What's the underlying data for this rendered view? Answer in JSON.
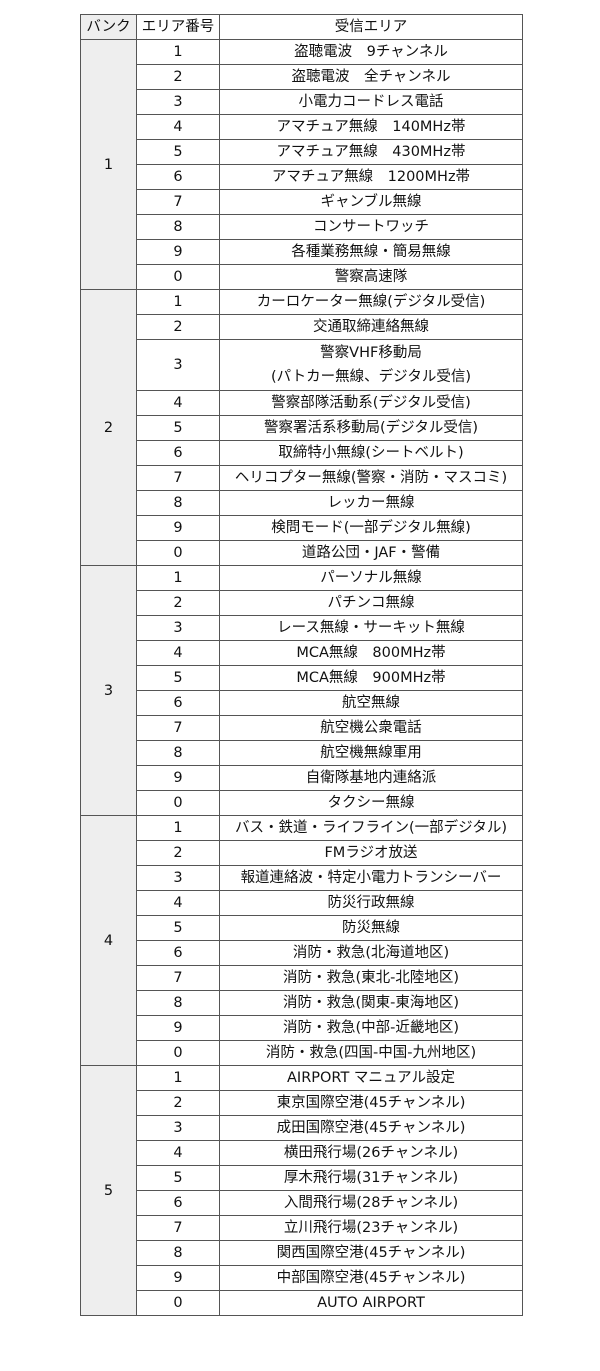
{
  "header": {
    "bank": "バンク",
    "area_no": "エリア番号",
    "area": "受信エリア"
  },
  "banks": [
    {
      "bank": "1",
      "rows": [
        {
          "no": "1",
          "area": "盗聴電波　9チャンネル"
        },
        {
          "no": "2",
          "area": "盗聴電波　全チャンネル"
        },
        {
          "no": "3",
          "area": "小電力コードレス電話"
        },
        {
          "no": "4",
          "area": "アマチュア無線　140MHz帯"
        },
        {
          "no": "5",
          "area": "アマチュア無線　430MHz帯"
        },
        {
          "no": "6",
          "area": "アマチュア無線　1200MHz帯"
        },
        {
          "no": "7",
          "area": "ギャンブル無線"
        },
        {
          "no": "8",
          "area": "コンサートワッチ"
        },
        {
          "no": "9",
          "area": "各種業務無線・簡易無線"
        },
        {
          "no": "0",
          "area": "警察高速隊"
        }
      ]
    },
    {
      "bank": "2",
      "rows": [
        {
          "no": "1",
          "area": "カーロケーター無線(デジタル受信)"
        },
        {
          "no": "2",
          "area": "交通取締連絡無線"
        },
        {
          "no": "3",
          "area": "警察VHF移動局",
          "area2": "(パトカー無線、デジタル受信)"
        },
        {
          "no": "4",
          "area": "警察部隊活動系(デジタル受信)"
        },
        {
          "no": "5",
          "area": "警察署活系移動局(デジタル受信)"
        },
        {
          "no": "6",
          "area": "取締特小無線(シートベルト)"
        },
        {
          "no": "7",
          "area": "ヘリコプター無線(警察・消防・マスコミ)"
        },
        {
          "no": "8",
          "area": "レッカー無線"
        },
        {
          "no": "9",
          "area": "検問モード(一部デジタル無線)"
        },
        {
          "no": "0",
          "area": "道路公団・JAF・警備"
        }
      ]
    },
    {
      "bank": "3",
      "rows": [
        {
          "no": "1",
          "area": "パーソナル無線"
        },
        {
          "no": "2",
          "area": "パチンコ無線"
        },
        {
          "no": "3",
          "area": "レース無線・サーキット無線"
        },
        {
          "no": "4",
          "area": "MCA無線　800MHz帯"
        },
        {
          "no": "5",
          "area": "MCA無線　900MHz帯"
        },
        {
          "no": "6",
          "area": "航空無線"
        },
        {
          "no": "7",
          "area": "航空機公衆電話"
        },
        {
          "no": "8",
          "area": "航空機無線軍用"
        },
        {
          "no": "9",
          "area": "自衛隊基地内連絡派"
        },
        {
          "no": "0",
          "area": "タクシー無線"
        }
      ]
    },
    {
      "bank": "4",
      "rows": [
        {
          "no": "1",
          "area": "バス・鉄道・ライフライン(一部デジタル)"
        },
        {
          "no": "2",
          "area": "FMラジオ放送"
        },
        {
          "no": "3",
          "area": "報道連絡波・特定小電力トランシーバー"
        },
        {
          "no": "4",
          "area": "防災行政無線"
        },
        {
          "no": "5",
          "area": "防災無線"
        },
        {
          "no": "6",
          "area": "消防・救急(北海道地区)"
        },
        {
          "no": "7",
          "area": "消防・救急(東北-北陸地区)"
        },
        {
          "no": "8",
          "area": "消防・救急(関東-東海地区)"
        },
        {
          "no": "9",
          "area": "消防・救急(中部-近畿地区)"
        },
        {
          "no": "0",
          "area": "消防・救急(四国-中国-九州地区)"
        }
      ]
    },
    {
      "bank": "5",
      "rows": [
        {
          "no": "1",
          "area": "AIRPORT マニュアル設定"
        },
        {
          "no": "2",
          "area": "東京国際空港(45チャンネル)"
        },
        {
          "no": "3",
          "area": "成田国際空港(45チャンネル)"
        },
        {
          "no": "4",
          "area": "横田飛行場(26チャンネル)"
        },
        {
          "no": "5",
          "area": "厚木飛行場(31チャンネル)"
        },
        {
          "no": "6",
          "area": "入間飛行場(28チャンネル)"
        },
        {
          "no": "7",
          "area": "立川飛行場(23チャンネル)"
        },
        {
          "no": "8",
          "area": "関西国際空港(45チャンネル)"
        },
        {
          "no": "9",
          "area": "中部国際空港(45チャンネル)"
        },
        {
          "no": "0",
          "area": "AUTO AIRPORT"
        }
      ]
    }
  ]
}
